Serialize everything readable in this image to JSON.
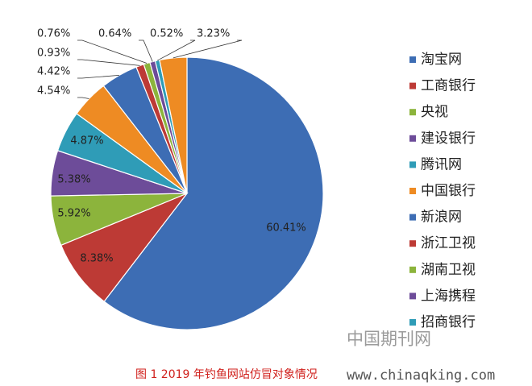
{
  "chart_data": {
    "type": "pie",
    "categories": [
      "淘宝网",
      "工商银行",
      "央视",
      "建设银行",
      "腾讯网",
      "中国银行",
      "新浪网",
      "浙江卫视",
      "湖南卫视",
      "上海携程",
      "招商银行",
      null
    ],
    "values": [
      60.41,
      8.38,
      5.92,
      5.38,
      4.87,
      4.54,
      4.42,
      0.93,
      0.76,
      0.64,
      0.52,
      3.23
    ],
    "value_labels": [
      "60.41%",
      "8.38%",
      "5.92%",
      "5.38%",
      "4.87%",
      "4.54%",
      "4.42%",
      "0.93%",
      "0.76%",
      "0.64%",
      "0.52%",
      "3.23%"
    ],
    "colors": [
      "#3D6DB4",
      "#BD3A35",
      "#8CB43C",
      "#6D4C99",
      "#2F9CB7",
      "#EE8B23",
      "#3D6DB4",
      "#BD3A35",
      "#8CB43C",
      "#6D4C99",
      "#2F9CB7",
      "#EE8B23"
    ],
    "legend": "right",
    "caption": "图 1 2019 年钓鱼网站仿冒对象情况",
    "watermark": [
      "中国期刊网",
      "www.chinaqking.com"
    ]
  }
}
